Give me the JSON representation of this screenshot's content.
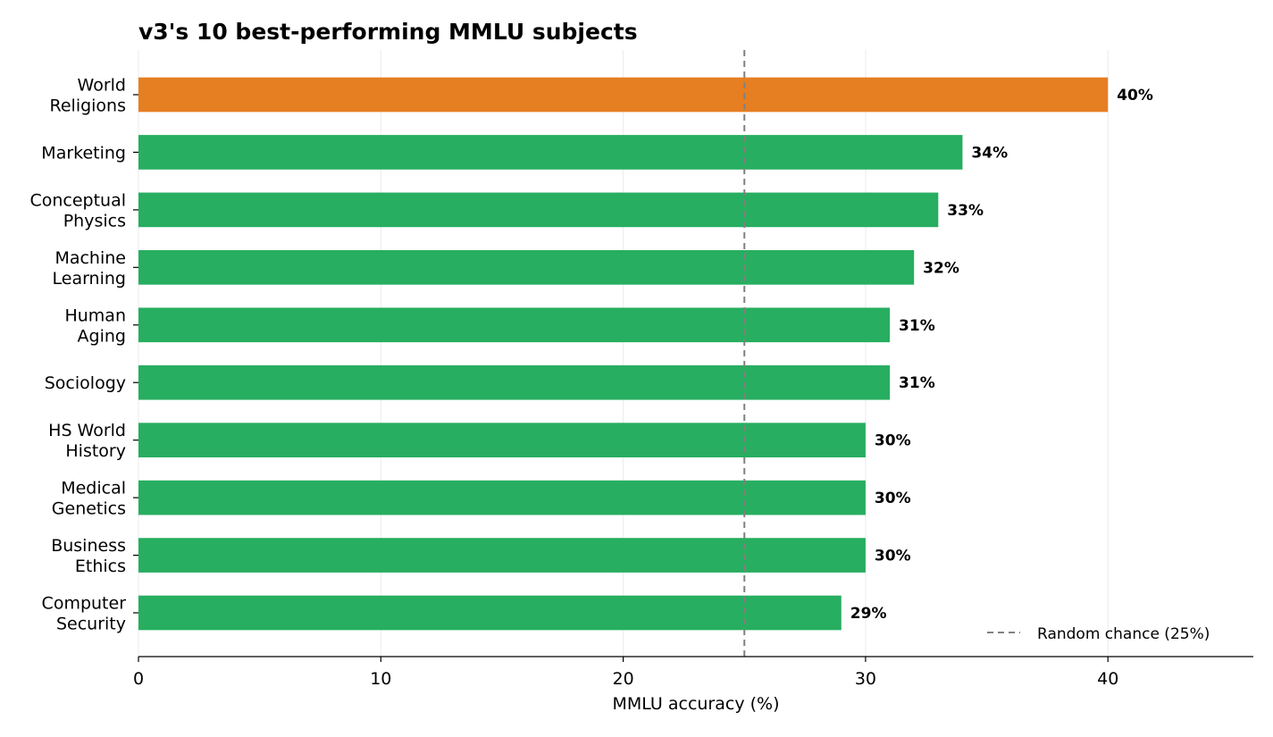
{
  "chart_data": {
    "type": "bar",
    "orientation": "horizontal",
    "title": "v3's 10 best-performing MMLU subjects",
    "xlabel": "MMLU accuracy (%)",
    "ylabel": "",
    "xlim": [
      0,
      46
    ],
    "xticks": [
      0,
      10,
      20,
      30,
      40
    ],
    "grid": "vertical",
    "categories": [
      [
        "World",
        "Religions"
      ],
      [
        "Marketing"
      ],
      [
        "Conceptual",
        "Physics"
      ],
      [
        "Machine",
        "Learning"
      ],
      [
        "Human",
        "Aging"
      ],
      [
        "Sociology"
      ],
      [
        "HS World",
        "History"
      ],
      [
        "Medical",
        "Genetics"
      ],
      [
        "Business",
        "Ethics"
      ],
      [
        "Computer",
        "Security"
      ]
    ],
    "values": [
      40,
      34,
      33,
      32,
      31,
      31,
      30,
      30,
      30,
      29
    ],
    "value_labels": [
      "40%",
      "34%",
      "33%",
      "32%",
      "31%",
      "31%",
      "30%",
      "30%",
      "30%",
      "29%"
    ],
    "bar_colors": [
      "#e67e22",
      "#27ae60",
      "#27ae60",
      "#27ae60",
      "#27ae60",
      "#27ae60",
      "#27ae60",
      "#27ae60",
      "#27ae60",
      "#27ae60"
    ],
    "reference_line": {
      "value": 25,
      "label": "Random chance (25%)",
      "color": "#808080",
      "style": "dashed"
    },
    "legend": {
      "position": "bottom-right",
      "entries": [
        "Random chance (25%)"
      ]
    }
  }
}
